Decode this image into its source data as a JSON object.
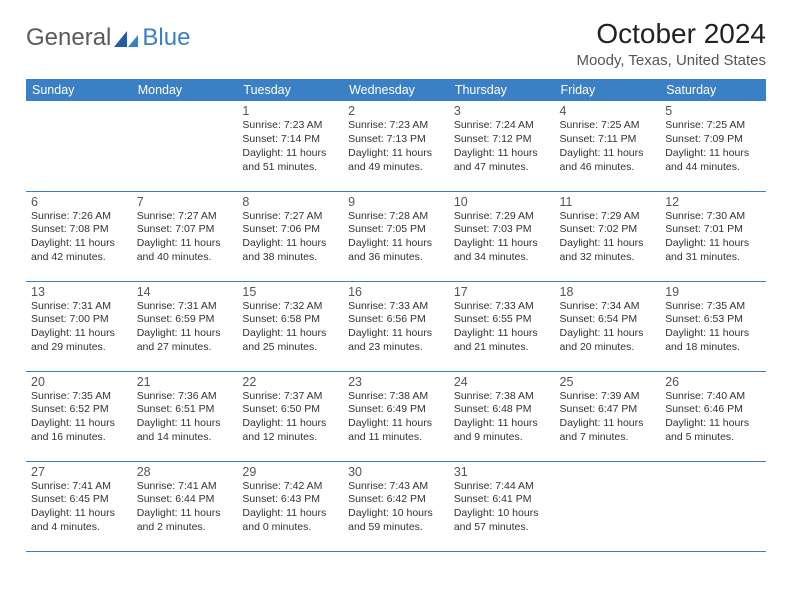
{
  "brand": {
    "part1": "General",
    "part2": "Blue"
  },
  "title": "October 2024",
  "location": "Moody, Texas, United States",
  "colors": {
    "header_bg": "#3b7fc4",
    "header_text": "#ffffff",
    "row_border": "#3b7fc4",
    "text_color": "#333333",
    "title_color": "#222222",
    "location_color": "#555555",
    "background": "#ffffff"
  },
  "fonts": {
    "title_size": 28,
    "location_size": 15,
    "header_size": 12.5,
    "daynum_size": 12.5,
    "cell_size": 10.5
  },
  "days": [
    "Sunday",
    "Monday",
    "Tuesday",
    "Wednesday",
    "Thursday",
    "Friday",
    "Saturday"
  ],
  "weeks": [
    [
      null,
      null,
      {
        "n": "1",
        "sr": "7:23 AM",
        "ss": "7:14 PM",
        "dl": "11 hours and 51 minutes."
      },
      {
        "n": "2",
        "sr": "7:23 AM",
        "ss": "7:13 PM",
        "dl": "11 hours and 49 minutes."
      },
      {
        "n": "3",
        "sr": "7:24 AM",
        "ss": "7:12 PM",
        "dl": "11 hours and 47 minutes."
      },
      {
        "n": "4",
        "sr": "7:25 AM",
        "ss": "7:11 PM",
        "dl": "11 hours and 46 minutes."
      },
      {
        "n": "5",
        "sr": "7:25 AM",
        "ss": "7:09 PM",
        "dl": "11 hours and 44 minutes."
      }
    ],
    [
      {
        "n": "6",
        "sr": "7:26 AM",
        "ss": "7:08 PM",
        "dl": "11 hours and 42 minutes."
      },
      {
        "n": "7",
        "sr": "7:27 AM",
        "ss": "7:07 PM",
        "dl": "11 hours and 40 minutes."
      },
      {
        "n": "8",
        "sr": "7:27 AM",
        "ss": "7:06 PM",
        "dl": "11 hours and 38 minutes."
      },
      {
        "n": "9",
        "sr": "7:28 AM",
        "ss": "7:05 PM",
        "dl": "11 hours and 36 minutes."
      },
      {
        "n": "10",
        "sr": "7:29 AM",
        "ss": "7:03 PM",
        "dl": "11 hours and 34 minutes."
      },
      {
        "n": "11",
        "sr": "7:29 AM",
        "ss": "7:02 PM",
        "dl": "11 hours and 32 minutes."
      },
      {
        "n": "12",
        "sr": "7:30 AM",
        "ss": "7:01 PM",
        "dl": "11 hours and 31 minutes."
      }
    ],
    [
      {
        "n": "13",
        "sr": "7:31 AM",
        "ss": "7:00 PM",
        "dl": "11 hours and 29 minutes."
      },
      {
        "n": "14",
        "sr": "7:31 AM",
        "ss": "6:59 PM",
        "dl": "11 hours and 27 minutes."
      },
      {
        "n": "15",
        "sr": "7:32 AM",
        "ss": "6:58 PM",
        "dl": "11 hours and 25 minutes."
      },
      {
        "n": "16",
        "sr": "7:33 AM",
        "ss": "6:56 PM",
        "dl": "11 hours and 23 minutes."
      },
      {
        "n": "17",
        "sr": "7:33 AM",
        "ss": "6:55 PM",
        "dl": "11 hours and 21 minutes."
      },
      {
        "n": "18",
        "sr": "7:34 AM",
        "ss": "6:54 PM",
        "dl": "11 hours and 20 minutes."
      },
      {
        "n": "19",
        "sr": "7:35 AM",
        "ss": "6:53 PM",
        "dl": "11 hours and 18 minutes."
      }
    ],
    [
      {
        "n": "20",
        "sr": "7:35 AM",
        "ss": "6:52 PM",
        "dl": "11 hours and 16 minutes."
      },
      {
        "n": "21",
        "sr": "7:36 AM",
        "ss": "6:51 PM",
        "dl": "11 hours and 14 minutes."
      },
      {
        "n": "22",
        "sr": "7:37 AM",
        "ss": "6:50 PM",
        "dl": "11 hours and 12 minutes."
      },
      {
        "n": "23",
        "sr": "7:38 AM",
        "ss": "6:49 PM",
        "dl": "11 hours and 11 minutes."
      },
      {
        "n": "24",
        "sr": "7:38 AM",
        "ss": "6:48 PM",
        "dl": "11 hours and 9 minutes."
      },
      {
        "n": "25",
        "sr": "7:39 AM",
        "ss": "6:47 PM",
        "dl": "11 hours and 7 minutes."
      },
      {
        "n": "26",
        "sr": "7:40 AM",
        "ss": "6:46 PM",
        "dl": "11 hours and 5 minutes."
      }
    ],
    [
      {
        "n": "27",
        "sr": "7:41 AM",
        "ss": "6:45 PM",
        "dl": "11 hours and 4 minutes."
      },
      {
        "n": "28",
        "sr": "7:41 AM",
        "ss": "6:44 PM",
        "dl": "11 hours and 2 minutes."
      },
      {
        "n": "29",
        "sr": "7:42 AM",
        "ss": "6:43 PM",
        "dl": "11 hours and 0 minutes."
      },
      {
        "n": "30",
        "sr": "7:43 AM",
        "ss": "6:42 PM",
        "dl": "10 hours and 59 minutes."
      },
      {
        "n": "31",
        "sr": "7:44 AM",
        "ss": "6:41 PM",
        "dl": "10 hours and 57 minutes."
      },
      null,
      null
    ]
  ],
  "labels": {
    "sunrise": "Sunrise:",
    "sunset": "Sunset:",
    "daylight": "Daylight:"
  }
}
